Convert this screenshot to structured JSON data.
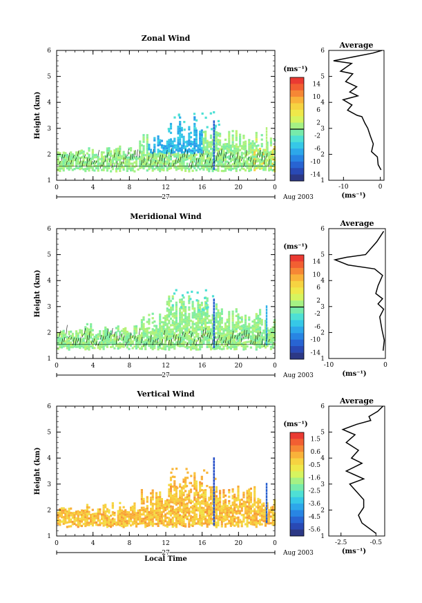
{
  "chart_data": [
    {
      "type": "heatmap",
      "title": "Zonal Wind",
      "xlabel": "",
      "ylabel": "Height (km)",
      "xlim": [
        0,
        24
      ],
      "ylim": [
        1,
        6
      ],
      "xticks": [
        "0",
        "4",
        "8",
        "12",
        "16",
        "20",
        "0"
      ],
      "yticks": [
        "1",
        "2",
        "3",
        "4",
        "5",
        "6"
      ],
      "date_label": "27",
      "date_suffix": "Aug 2003",
      "colorbar": {
        "label": "(ms⁻¹)",
        "range": [
          -16,
          16
        ],
        "ticks": [
          "14",
          "10",
          "6",
          "2",
          "-2",
          "-6",
          "-10",
          "-14"
        ],
        "zero_line": 0
      },
      "contour_level": 0,
      "side_profile": {
        "title": "Average",
        "xlabel": "(ms⁻¹)",
        "xlim": [
          -14,
          1
        ],
        "xticks": [
          "-10",
          "0"
        ],
        "profile": [
          [
            0.2,
            1.4
          ],
          [
            -0.6,
            1.6
          ],
          [
            -0.8,
            1.9
          ],
          [
            -2.4,
            2.1
          ],
          [
            -1.9,
            2.4
          ],
          [
            -2.7,
            2.7
          ],
          [
            -3.4,
            3.0
          ],
          [
            -4.2,
            3.2
          ],
          [
            -5.0,
            3.45
          ],
          [
            -6.3,
            3.5
          ],
          [
            -8.9,
            3.7
          ],
          [
            -7.7,
            3.9
          ],
          [
            -10.1,
            4.1
          ],
          [
            -6.1,
            4.25
          ],
          [
            -8.3,
            4.4
          ],
          [
            -6.4,
            4.6
          ],
          [
            -9.4,
            4.8
          ],
          [
            -7.5,
            5.1
          ],
          [
            -10.8,
            5.2
          ],
          [
            -7.8,
            5.5
          ],
          [
            -12.7,
            5.6
          ],
          [
            -2.0,
            5.9
          ],
          [
            0.4,
            6.0
          ]
        ]
      }
    },
    {
      "type": "heatmap",
      "title": "Meridional Wind",
      "xlabel": "",
      "ylabel": "Height (km)",
      "xlim": [
        0,
        24
      ],
      "ylim": [
        1,
        6
      ],
      "xticks": [
        "0",
        "4",
        "8",
        "12",
        "16",
        "20",
        "0"
      ],
      "yticks": [
        "1",
        "2",
        "3",
        "4",
        "5",
        "6"
      ],
      "date_label": "27",
      "date_suffix": "Aug 2003",
      "colorbar": {
        "label": "(ms⁻¹)",
        "range": [
          -16,
          16
        ],
        "ticks": [
          "14",
          "10",
          "6",
          "2",
          "-2",
          "-6",
          "-10",
          "-14"
        ],
        "zero_line": 0
      },
      "contour_level": 0,
      "side_profile": {
        "title": "Average",
        "xlabel": "(ms⁻¹)",
        "xlim": [
          -10,
          0
        ],
        "xticks": [
          "-10",
          "0"
        ],
        "profile": [
          [
            -0.4,
            1.3
          ],
          [
            -0.2,
            1.7
          ],
          [
            -0.6,
            2.1
          ],
          [
            -1.0,
            2.6
          ],
          [
            -0.3,
            2.9
          ],
          [
            -1.3,
            3.1
          ],
          [
            -0.5,
            3.3
          ],
          [
            -1.7,
            3.5
          ],
          [
            -1.3,
            3.8
          ],
          [
            -0.5,
            4.2
          ],
          [
            -1.9,
            4.45
          ],
          [
            -6.6,
            4.6
          ],
          [
            -8.9,
            4.8
          ],
          [
            -6.8,
            4.9
          ],
          [
            -3.5,
            5.0
          ],
          [
            -1.5,
            5.5
          ],
          [
            -0.3,
            5.9
          ]
        ]
      }
    },
    {
      "type": "heatmap",
      "title": "Vertical Wind",
      "xlabel": "Local Time",
      "ylabel": "Height (km)",
      "xlim": [
        0,
        24
      ],
      "ylim": [
        1,
        6
      ],
      "xticks": [
        "0",
        "4",
        "8",
        "12",
        "16",
        "20",
        "0"
      ],
      "yticks": [
        "1",
        "2",
        "3",
        "4",
        "5",
        "6"
      ],
      "date_label": "27",
      "date_suffix": "Aug 2003",
      "colorbar": {
        "label": "(ms⁻¹)",
        "range": [
          -6,
          2
        ],
        "ticks": [
          "1.5",
          "0.6",
          "-0.5",
          "-1.6",
          "-2.5",
          "-3.6",
          "-4.5",
          "-5.6"
        ]
      },
      "side_profile": {
        "title": "Average",
        "xlabel": "(ms⁻¹)",
        "xlim": [
          -3.2,
          0
        ],
        "xticks": [
          "-2.5",
          "-0.5"
        ],
        "profile": [
          [
            -0.5,
            1.1
          ],
          [
            -1.3,
            1.5
          ],
          [
            -1.5,
            1.8
          ],
          [
            -1.2,
            2.1
          ],
          [
            -1.2,
            2.4
          ],
          [
            -1.6,
            2.7
          ],
          [
            -2.0,
            3.0
          ],
          [
            -1.2,
            3.2
          ],
          [
            -2.2,
            3.5
          ],
          [
            -1.3,
            3.8
          ],
          [
            -1.9,
            4.0
          ],
          [
            -1.5,
            4.3
          ],
          [
            -2.2,
            4.6
          ],
          [
            -1.7,
            4.9
          ],
          [
            -2.4,
            5.1
          ],
          [
            -1.6,
            5.3
          ],
          [
            -0.8,
            5.45
          ],
          [
            -0.9,
            5.6
          ],
          [
            -0.4,
            5.8
          ],
          [
            -0.1,
            6.0
          ]
        ]
      }
    }
  ]
}
